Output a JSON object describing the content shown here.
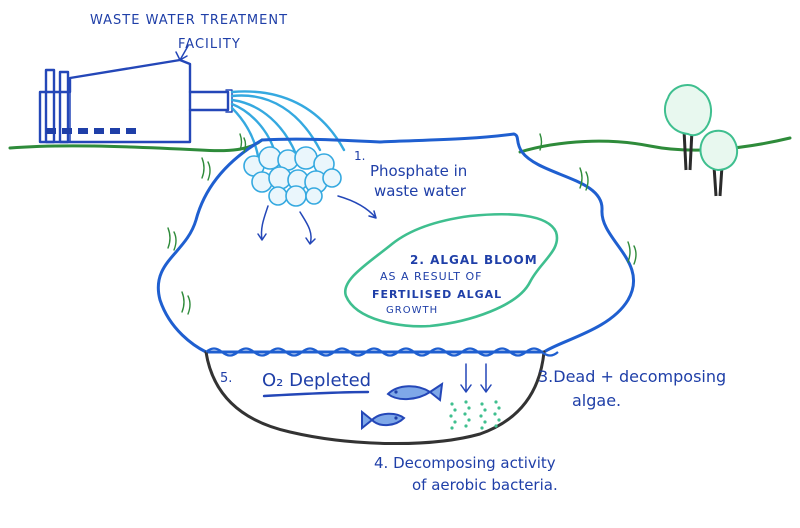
{
  "facility": {
    "title_line1": "WASTE WATER TREATMENT",
    "title_line2": "FACILITY"
  },
  "labels": {
    "phosphate_number": "1.",
    "phosphate_line1": "Phosphate in",
    "phosphate_line2": "waste water",
    "bloom_line1": "2. ALGAL BLOOM",
    "bloom_line2": "AS A RESULT OF",
    "bloom_line3": "FERTILISED ALGAL",
    "bloom_line4": "GROWTH",
    "dead_line1": "3.Dead + decomposing",
    "dead_line2": "algae.",
    "decomp_line1": "4. Decomposing activity",
    "decomp_line2": "of aerobic bacteria.",
    "oxygen_number": "5.",
    "oxygen_label": "O₂ Depleted"
  },
  "colors": {
    "ink": "#2447b8",
    "grass": "#2e8b3a",
    "water_line": "#1f5fd0",
    "outflow": "#35a9e0",
    "algae": "#3fbf8f",
    "tree_trunk": "#2b2b2b",
    "sediment": "#333333"
  }
}
